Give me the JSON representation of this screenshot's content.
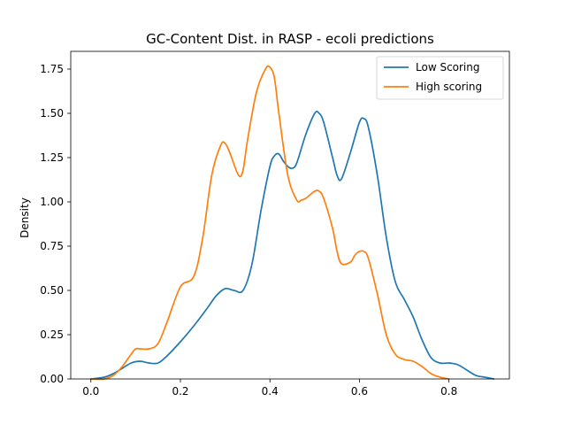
{
  "chart_data": {
    "type": "line",
    "title": "GC-Content Dist. in RASP - ecoli predictions",
    "xlabel": "",
    "ylabel": "Density",
    "xlim": [
      -0.045,
      0.935
    ],
    "ylim": [
      0,
      1.85
    ],
    "xticks": [
      "0.0",
      "0.2",
      "0.4",
      "0.6",
      "0.8"
    ],
    "yticks": [
      "0.00",
      "0.25",
      "0.50",
      "0.75",
      "1.00",
      "1.25",
      "1.50",
      "1.75"
    ],
    "grid": false,
    "legend": "top-right",
    "series": [
      {
        "name": "Low Scoring",
        "color": "#1f77b4",
        "x": [
          0.0,
          0.03,
          0.05,
          0.07,
          0.09,
          0.11,
          0.13,
          0.15,
          0.17,
          0.2,
          0.23,
          0.26,
          0.28,
          0.3,
          0.32,
          0.34,
          0.36,
          0.38,
          0.4,
          0.41,
          0.42,
          0.43,
          0.44,
          0.45,
          0.46,
          0.48,
          0.5,
          0.51,
          0.52,
          0.54,
          0.55,
          0.56,
          0.58,
          0.6,
          0.61,
          0.62,
          0.64,
          0.66,
          0.68,
          0.7,
          0.72,
          0.74,
          0.76,
          0.78,
          0.8,
          0.82,
          0.84,
          0.86,
          0.88,
          0.9
        ],
        "values": [
          0.0,
          0.01,
          0.03,
          0.06,
          0.09,
          0.1,
          0.09,
          0.09,
          0.13,
          0.21,
          0.3,
          0.4,
          0.47,
          0.51,
          0.5,
          0.5,
          0.65,
          0.95,
          1.2,
          1.26,
          1.27,
          1.23,
          1.2,
          1.19,
          1.22,
          1.38,
          1.5,
          1.5,
          1.45,
          1.25,
          1.15,
          1.13,
          1.28,
          1.45,
          1.47,
          1.42,
          1.15,
          0.8,
          0.55,
          0.45,
          0.35,
          0.22,
          0.12,
          0.09,
          0.09,
          0.08,
          0.05,
          0.02,
          0.01,
          0.0
        ]
      },
      {
        "name": "High scoring",
        "color": "#ff7f0e",
        "x": [
          0.0,
          0.03,
          0.05,
          0.07,
          0.09,
          0.1,
          0.11,
          0.13,
          0.15,
          0.17,
          0.2,
          0.23,
          0.25,
          0.27,
          0.29,
          0.3,
          0.31,
          0.33,
          0.34,
          0.35,
          0.37,
          0.39,
          0.4,
          0.41,
          0.42,
          0.44,
          0.46,
          0.47,
          0.48,
          0.5,
          0.51,
          0.52,
          0.54,
          0.55,
          0.56,
          0.58,
          0.59,
          0.6,
          0.61,
          0.62,
          0.64,
          0.66,
          0.68,
          0.7,
          0.72,
          0.74,
          0.76,
          0.78,
          0.8
        ],
        "values": [
          0.0,
          0.0,
          0.02,
          0.07,
          0.14,
          0.17,
          0.17,
          0.17,
          0.2,
          0.32,
          0.52,
          0.58,
          0.8,
          1.15,
          1.32,
          1.33,
          1.28,
          1.15,
          1.18,
          1.35,
          1.62,
          1.75,
          1.76,
          1.7,
          1.5,
          1.15,
          1.01,
          1.01,
          1.02,
          1.06,
          1.06,
          1.02,
          0.85,
          0.72,
          0.65,
          0.66,
          0.7,
          0.72,
          0.72,
          0.68,
          0.48,
          0.25,
          0.14,
          0.11,
          0.1,
          0.07,
          0.03,
          0.01,
          0.0
        ]
      }
    ]
  }
}
